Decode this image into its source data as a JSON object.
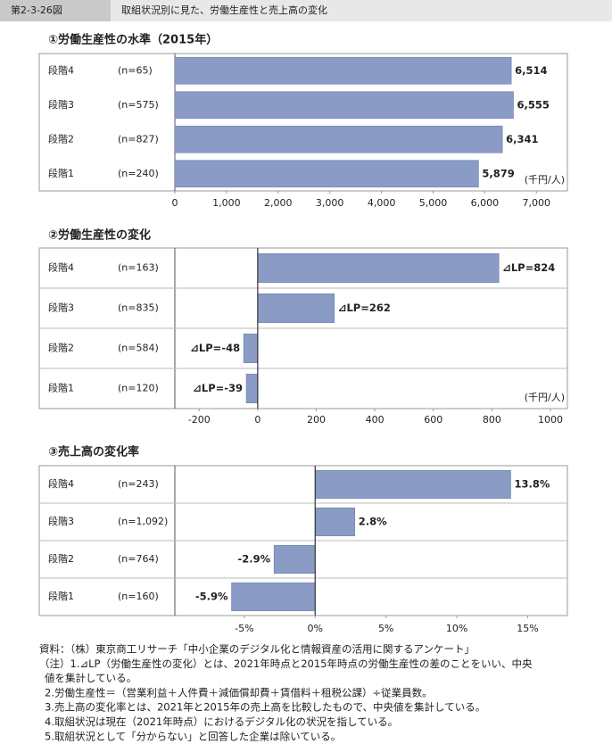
{
  "header": {
    "figure_no": "第2-3-26図",
    "title": "取組状況別に見た、労働生産性と売上高の変化"
  },
  "chart_data": [
    {
      "type": "bar",
      "orientation": "horizontal",
      "title": "①労働生産性の水準（2015年）",
      "categories": [
        "段階4",
        "段階3",
        "段階2",
        "段階1"
      ],
      "category_notes": [
        "(n=65)",
        "(n=575)",
        "(n=827)",
        "(n=240)"
      ],
      "values": [
        6514,
        6555,
        6341,
        5879
      ],
      "value_labels": [
        "6,514",
        "6,555",
        "6,341",
        "5,879"
      ],
      "unit": "(千円/人)",
      "color": "#8a9cc5",
      "xlim": [
        0,
        7600
      ],
      "xticks": [
        0,
        {
          "value": 1000,
          "label": "1,000"
        },
        {
          "value": 2000,
          "label": "2,000"
        },
        {
          "value": 3000,
          "label": "3,000"
        },
        {
          "value": 4000,
          "label": "4,000"
        },
        {
          "value": 5000,
          "label": "5,000"
        },
        {
          "value": 6000,
          "label": "6,000"
        },
        {
          "value": 7000,
          "label": "7,000"
        }
      ],
      "row_separators": false
    },
    {
      "type": "bar",
      "orientation": "horizontal",
      "title": "②労働生産性の変化",
      "categories": [
        "段階4",
        "段階3",
        "段階2",
        "段階1"
      ],
      "category_notes": [
        "(n=163)",
        "(n=835)",
        "(n=584)",
        "(n=120)"
      ],
      "values": [
        824,
        262,
        -48,
        -39
      ],
      "value_labels": [
        "⊿LP=824",
        "⊿LP=262",
        "⊿LP=-48",
        "⊿LP=-39"
      ],
      "unit": "(千円/人)",
      "color": "#8a9cc5",
      "xlim": [
        -283,
        1058
      ],
      "xticks": [
        -200,
        0,
        200,
        400,
        600,
        800,
        1000
      ],
      "row_separators": true
    },
    {
      "type": "bar",
      "orientation": "horizontal",
      "title": "③売上高の変化率",
      "categories": [
        "段階4",
        "段階3",
        "段階2",
        "段階1"
      ],
      "category_notes": [
        "(n=243)",
        "(n=1,092)",
        "(n=764)",
        "(n=160)"
      ],
      "values": [
        13.8,
        2.8,
        -2.9,
        -5.9
      ],
      "value_labels": [
        "13.8%",
        "2.8%",
        "-2.9%",
        "-5.9%"
      ],
      "color": "#8a9cc5",
      "xlim": [
        -9.9,
        17.8
      ],
      "xticks": [
        {
          "value": -5,
          "label": "-5%"
        },
        {
          "value": 0,
          "label": "0%"
        },
        {
          "value": 5,
          "label": "5%"
        },
        {
          "value": 10,
          "label": "10%"
        },
        {
          "value": 15,
          "label": "15%"
        }
      ],
      "row_separators": true
    }
  ],
  "notes": [
    "資料：（株）東京商工リサーチ「中小企業のデジタル化と情報資産の活用に関するアンケート」",
    "（注）1.⊿LP（労働生産性の変化）とは、2021年時点と2015年時点の労働生産性の差のことをいい、中央",
    "値を集計している。",
    "2.労働生産性＝（営業利益＋人件費＋減価償却費＋賃借料＋租税公課）÷従業員数。",
    "3.売上高の変化率とは、2021年と2015年の売上高を比較したもので、中央値を集計している。",
    "4.取組状況は現在（2021年時点）におけるデジタル化の状況を指している。",
    "5.取組状況として「分からない」と回答した企業は除いている。"
  ]
}
